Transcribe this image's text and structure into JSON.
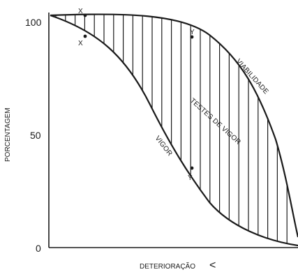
{
  "axes": {
    "y_title": "PORCENTAGEM",
    "x_title": "DETERIORAÇÃO",
    "x_arrow": "<",
    "y_ticks": [
      "100",
      "50",
      "0"
    ]
  },
  "curves": {
    "upper_label": "VIABILIDADE",
    "lower_label": "VIGOR",
    "band_label": "TESTES DE VIGOR"
  },
  "points": {
    "x_upper": "X",
    "x_lower": "X",
    "y_upper": "Y",
    "y_lower": "Y"
  }
}
